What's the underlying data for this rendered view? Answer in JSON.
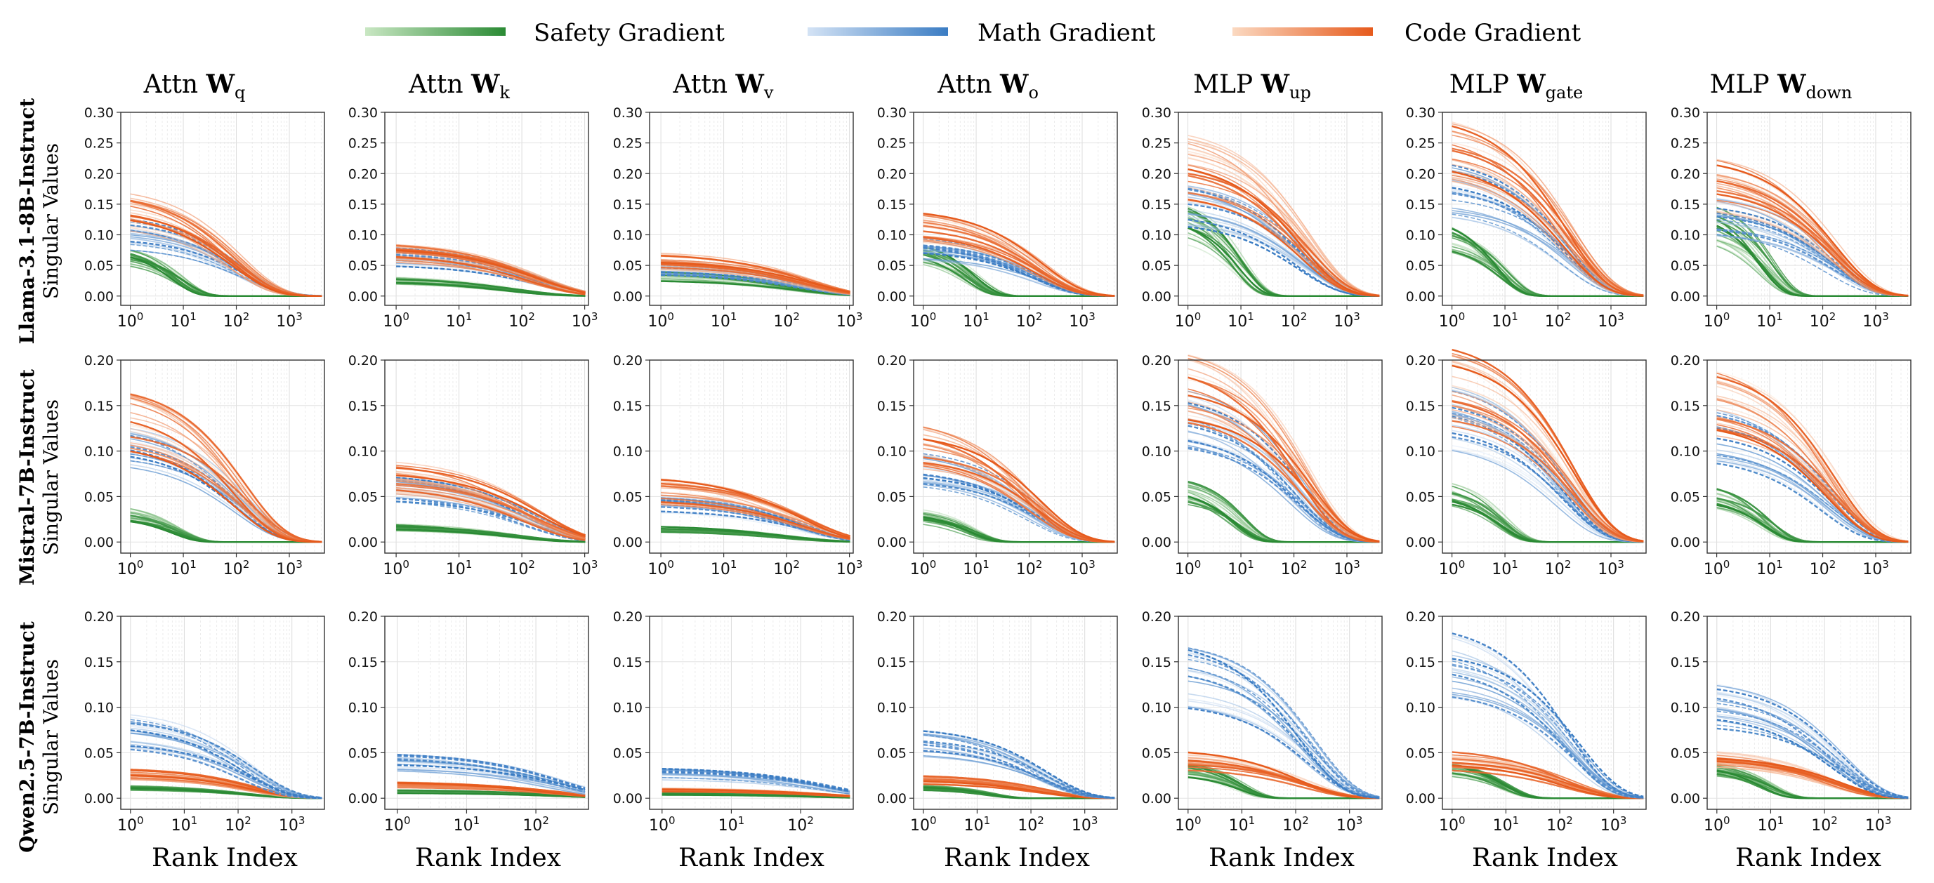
{
  "legend": [
    {
      "label": "Safety Gradient",
      "color": "#2a8a34",
      "color_light": "#c9e7c3"
    },
    {
      "label": "Math Gradient",
      "color": "#3a7cc3",
      "color_light": "#d4e3f5"
    },
    {
      "label": "Code Gradient",
      "color": "#e65a1c",
      "color_light": "#fbd9c1"
    }
  ],
  "columns": [
    {
      "prefix": "Attn ",
      "mat": "W",
      "sub": "q"
    },
    {
      "prefix": "Attn ",
      "mat": "W",
      "sub": "k"
    },
    {
      "prefix": "Attn ",
      "mat": "W",
      "sub": "v"
    },
    {
      "prefix": "Attn ",
      "mat": "W",
      "sub": "o"
    },
    {
      "prefix": "MLP ",
      "mat": "W",
      "sub": "up"
    },
    {
      "prefix": "MLP ",
      "mat": "W",
      "sub": "gate"
    },
    {
      "prefix": "MLP ",
      "mat": "W",
      "sub": "down"
    }
  ],
  "rows": [
    {
      "model": "Llama-3.1-8B-Instruct",
      "ylabel": "Singular Values"
    },
    {
      "model": "Mistral-7B-Instruct",
      "ylabel": "Singular Values"
    },
    {
      "model": "Qwen2.5-7B-Instruct",
      "ylabel": "Singular Values"
    }
  ],
  "xlabel": "Rank Index",
  "chart_data": {
    "type": "line",
    "x_scale": "log",
    "xlabel": "Rank Index",
    "ylabel": "Singular Values",
    "series_names": [
      "Safety Gradient",
      "Math Gradient",
      "Code Gradient"
    ],
    "rows": [
      {
        "model": "Llama-3.1-8B-Instruct",
        "yticks": [
          "0.00",
          "0.05",
          "0.10",
          "0.15",
          "0.20",
          "0.25",
          "0.30"
        ],
        "ylim": [
          0,
          0.3
        ],
        "panels": [
          {
            "matrix": "Attn Wq",
            "xmax": 4096,
            "xticks": [
              "10^0",
              "10^1",
              "10^2",
              "10^3"
            ],
            "start": {
              "safety": 0.07,
              "math": 0.11,
              "code": 0.16
            },
            "decay": {
              "safety": 8,
              "math": 120,
              "code": 90
            }
          },
          {
            "matrix": "Attn Wk",
            "xmax": 1024,
            "xticks": [
              "10^0",
              "10^1",
              "10^2",
              "10^3"
            ],
            "start": {
              "safety": 0.028,
              "math": 0.07,
              "code": 0.078
            },
            "decay": {
              "safety": 70,
              "math": 160,
              "code": 160
            }
          },
          {
            "matrix": "Attn Wv",
            "xmax": 1024,
            "xticks": [
              "10^0",
              "10^1",
              "10^2",
              "10^3"
            ],
            "start": {
              "safety": 0.035,
              "math": 0.05,
              "code": 0.062
            },
            "decay": {
              "safety": 130,
              "math": 200,
              "code": 200
            }
          },
          {
            "matrix": "Attn Wo",
            "xmax": 4096,
            "xticks": [
              "10^0",
              "10^1",
              "10^2",
              "10^3"
            ],
            "start": {
              "safety": 0.075,
              "math": 0.085,
              "code": 0.12
            },
            "decay": {
              "safety": 9,
              "math": 150,
              "code": 150
            }
          },
          {
            "matrix": "MLP Wup",
            "xmax": 4096,
            "xticks": [
              "10^0",
              "10^1",
              "10^2",
              "10^3"
            ],
            "start": {
              "safety": 0.13,
              "math": 0.16,
              "code": 0.23
            },
            "decay": {
              "safety": 9,
              "math": 150,
              "code": 160
            }
          },
          {
            "matrix": "MLP Wgate",
            "xmax": 4096,
            "xticks": [
              "10^0",
              "10^1",
              "10^2",
              "10^3"
            ],
            "start": {
              "safety": 0.11,
              "math": 0.19,
              "code": 0.25
            },
            "decay": {
              "safety": 9,
              "math": 160,
              "code": 160
            }
          },
          {
            "matrix": "MLP Wdown",
            "xmax": 4096,
            "xticks": [
              "10^0",
              "10^1",
              "10^2",
              "10^3"
            ],
            "start": {
              "safety": 0.13,
              "math": 0.14,
              "code": 0.2
            },
            "decay": {
              "safety": 9,
              "math": 150,
              "code": 150
            }
          }
        ]
      },
      {
        "model": "Mistral-7B-Instruct",
        "yticks": [
          "0.00",
          "0.05",
          "0.10",
          "0.15",
          "0.20"
        ],
        "ylim": [
          0,
          0.2
        ],
        "panels": [
          {
            "matrix": "Attn Wq",
            "xmax": 4096,
            "xticks": [
              "10^0",
              "10^1",
              "10^2",
              "10^3"
            ],
            "start": {
              "safety": 0.035,
              "math": 0.11,
              "code": 0.145
            },
            "decay": {
              "safety": 8,
              "math": 120,
              "code": 120
            }
          },
          {
            "matrix": "Attn Wk",
            "xmax": 1024,
            "xticks": [
              "10^0",
              "10^1",
              "10^2",
              "10^3"
            ],
            "start": {
              "safety": 0.018,
              "math": 0.064,
              "code": 0.078
            },
            "decay": {
              "safety": 70,
              "math": 150,
              "code": 150
            }
          },
          {
            "matrix": "Attn Wv",
            "xmax": 1024,
            "xticks": [
              "10^0",
              "10^1",
              "10^2",
              "10^3"
            ],
            "start": {
              "safety": 0.015,
              "math": 0.045,
              "code": 0.06
            },
            "decay": {
              "safety": 100,
              "math": 180,
              "code": 180
            }
          },
          {
            "matrix": "Attn Wo",
            "xmax": 4096,
            "xticks": [
              "10^0",
              "10^1",
              "10^2",
              "10^3"
            ],
            "start": {
              "safety": 0.032,
              "math": 0.085,
              "code": 0.115
            },
            "decay": {
              "safety": 8,
              "math": 130,
              "code": 130
            }
          },
          {
            "matrix": "MLP Wup",
            "xmax": 4096,
            "xticks": [
              "10^0",
              "10^1",
              "10^2",
              "10^3"
            ],
            "start": {
              "safety": 0.06,
              "math": 0.15,
              "code": 0.18
            },
            "decay": {
              "safety": 9,
              "math": 120,
              "code": 160
            }
          },
          {
            "matrix": "MLP Wgate",
            "xmax": 4096,
            "xticks": [
              "10^0",
              "10^1",
              "10^2",
              "10^3"
            ],
            "start": {
              "safety": 0.06,
              "math": 0.15,
              "code": 0.185
            },
            "decay": {
              "safety": 9,
              "math": 120,
              "code": 160
            }
          },
          {
            "matrix": "MLP Wdown",
            "xmax": 4096,
            "xticks": [
              "10^0",
              "10^1",
              "10^2",
              "10^3"
            ],
            "start": {
              "safety": 0.055,
              "math": 0.13,
              "code": 0.17
            },
            "decay": {
              "safety": 9,
              "math": 120,
              "code": 160
            }
          }
        ]
      },
      {
        "model": "Qwen2.5-7B-Instruct",
        "yticks": [
          "0.00",
          "0.05",
          "0.10",
          "0.15",
          "0.20"
        ],
        "ylim": [
          0,
          0.2
        ],
        "panels": [
          {
            "matrix": "Attn Wq",
            "xmax": 3584,
            "xticks": [
              "10^0",
              "10^1",
              "10^2",
              "10^3"
            ],
            "start": {
              "safety": 0.012,
              "math": 0.08,
              "code": 0.03
            },
            "decay": {
              "safety": 120,
              "math": 150,
              "code": 160
            }
          },
          {
            "matrix": "Attn Wk",
            "xmax": 512,
            "xticks": [
              "10^0",
              "10^1",
              "10^2"
            ],
            "start": {
              "safety": 0.008,
              "math": 0.042,
              "code": 0.016
            },
            "decay": {
              "safety": 200,
              "math": 200,
              "code": 200
            }
          },
          {
            "matrix": "Attn Wv",
            "xmax": 512,
            "xticks": [
              "10^0",
              "10^1",
              "10^2"
            ],
            "start": {
              "safety": 0.005,
              "math": 0.028,
              "code": 0.01
            },
            "decay": {
              "safety": 200,
              "math": 250,
              "code": 250
            }
          },
          {
            "matrix": "Attn Wo",
            "xmax": 3584,
            "xticks": [
              "10^0",
              "10^1",
              "10^2",
              "10^3"
            ],
            "start": {
              "safety": 0.012,
              "math": 0.065,
              "code": 0.022
            },
            "decay": {
              "safety": 20,
              "math": 150,
              "code": 150
            }
          },
          {
            "matrix": "MLP Wup",
            "xmax": 3584,
            "xticks": [
              "10^0",
              "10^1",
              "10^2",
              "10^3"
            ],
            "start": {
              "safety": 0.035,
              "math": 0.145,
              "code": 0.045
            },
            "decay": {
              "safety": 9,
              "math": 170,
              "code": 150
            }
          },
          {
            "matrix": "MLP Wgate",
            "xmax": 3584,
            "xticks": [
              "10^0",
              "10^1",
              "10^2",
              "10^3"
            ],
            "start": {
              "safety": 0.035,
              "math": 0.16,
              "code": 0.045
            },
            "decay": {
              "safety": 9,
              "math": 170,
              "code": 150
            }
          },
          {
            "matrix": "MLP Wdown",
            "xmax": 3584,
            "xticks": [
              "10^0",
              "10^1",
              "10^2",
              "10^3"
            ],
            "start": {
              "safety": 0.035,
              "math": 0.11,
              "code": 0.045
            },
            "decay": {
              "safety": 9,
              "math": 170,
              "code": 150
            }
          }
        ]
      }
    ]
  }
}
